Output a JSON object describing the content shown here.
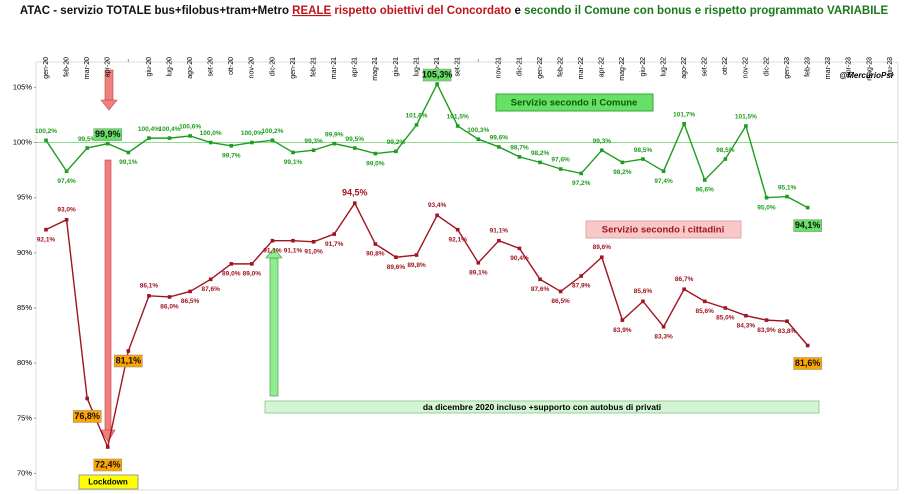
{
  "chart_data": {
    "type": "line",
    "title_parts": [
      "ATAC - servizio TOTALE bus+filobus+tram+Metro ",
      "REALE",
      " rispetto obiettivi del Concordato",
      " e ",
      "secondo il Comune con bonus e rispetto programmato VARIABILE"
    ],
    "credit": "@MercurioPsi",
    "annotations": [
      "da dicembre 2020 incluso +supporto con autobus di privati",
      "Lockdown"
    ],
    "categories": [
      "gen-20",
      "feb-20",
      "mar-20",
      "apr-20",
      null,
      "giu-20",
      "lug-20",
      "ago-20",
      "set-20",
      "ott-20",
      "nov-20",
      "dic-20",
      "gen-21",
      "feb-21",
      "mar-21",
      "apr-21",
      "mag-21",
      "giu-21",
      "lug-21",
      "ago-21",
      "set-21",
      null,
      "nov-21",
      "dic-21",
      "gen-22",
      "feb-22",
      "mar-22",
      "apr-22",
      "mag-22",
      "giu-22",
      "lug-22",
      "ago-22",
      "set-22",
      "ott-22",
      "nov-22",
      "dic-22",
      "gen-23",
      "feb-23",
      "mar-23",
      "apr-23",
      "mag-23",
      "giu-23"
    ],
    "series": [
      {
        "name": "Servizio secondo il Comune",
        "color": "#1e9e1e",
        "values": [
          100.2,
          97.4,
          99.5,
          99.9,
          99.1,
          100.4,
          100.4,
          100.6,
          100.0,
          99.7,
          100.0,
          100.2,
          99.1,
          99.3,
          99.9,
          99.5,
          99.0,
          99.2,
          101.6,
          105.3,
          101.5,
          100.3,
          99.6,
          98.7,
          98.2,
          97.6,
          97.2,
          99.3,
          98.2,
          98.5,
          97.4,
          101.7,
          96.6,
          98.5,
          101.5,
          95.0,
          95.1,
          94.1,
          null,
          null,
          null,
          null
        ],
        "value_labels": [
          "100,2%",
          "97,4%",
          "99,5%",
          "99,9%",
          "99,1%",
          "100,4%",
          "100,4%",
          "100,6%",
          "100,0%",
          "99,7%",
          "100,0%",
          "100,2%",
          "99,1%",
          "99,3%",
          "99,9%",
          "99,5%",
          "99,0%",
          "99,2%",
          "101,6%",
          "105,3%",
          "101,5%",
          "100,3%",
          "99,6%",
          "98,7%",
          "98,2%",
          "97,6%",
          "97,2%",
          "99,3%",
          "98,2%",
          "98,5%",
          "97,4%",
          "101,7%",
          "96,6%",
          "98,5%",
          "101,5%",
          "95,0%",
          "95,1%",
          "94,1%",
          null,
          null,
          null,
          null
        ]
      },
      {
        "name": "Servizio secondo i cittadini",
        "color": "#a01520",
        "values": [
          92.1,
          93.0,
          76.8,
          72.4,
          81.1,
          86.1,
          86.0,
          86.5,
          87.6,
          89.0,
          89.0,
          91.1,
          91.1,
          91.0,
          91.7,
          94.5,
          90.8,
          89.6,
          89.8,
          93.4,
          92.1,
          89.1,
          91.1,
          90.4,
          87.6,
          86.5,
          87.9,
          89.6,
          83.9,
          85.6,
          83.3,
          86.7,
          85.6,
          85.0,
          84.3,
          83.9,
          83.8,
          81.6,
          null,
          null,
          null,
          null
        ],
        "value_labels": [
          "92,1%",
          "93,0%",
          "76,8%",
          "72,4%",
          "81,1%",
          "86,1%",
          "86,0%",
          "86,5%",
          "87,6%",
          "89,0%",
          "89,0%",
          "91,1%",
          "91,1%",
          "91,0%",
          "91,7%",
          "94,5%",
          "90,8%",
          "89,6%",
          "89,8%",
          "93,4%",
          "92,1%",
          "89,1%",
          "91,1%",
          "90,4%",
          "87,6%",
          "86,5%",
          "87,9%",
          "89,6%",
          "83,9%",
          "85,6%",
          "83,3%",
          "86,7%",
          "85,6%",
          "85,0%",
          "84,3%",
          "83,9%",
          "83,8%",
          "81,6%",
          null,
          null,
          null,
          null
        ]
      }
    ],
    "ylim": [
      68.5,
      107.3
    ],
    "yticks": [
      {
        "value": 70,
        "label": "70%"
      },
      {
        "value": 75,
        "label": "75%"
      },
      {
        "value": 80,
        "label": "80%"
      },
      {
        "value": 85,
        "label": "85%"
      },
      {
        "value": 90,
        "label": "90%"
      },
      {
        "value": 95,
        "label": "95%"
      },
      {
        "value": 100,
        "label": "100%"
      },
      {
        "value": 105,
        "label": "105%"
      }
    ],
    "reference_line": 100
  }
}
